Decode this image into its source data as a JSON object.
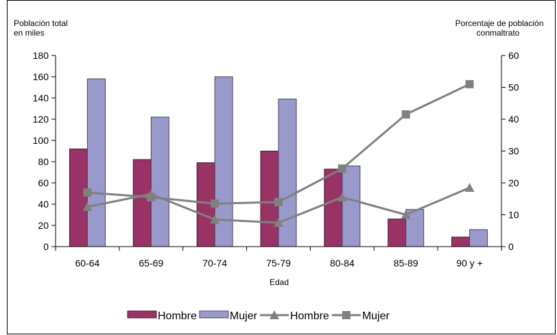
{
  "chart_data": {
    "type": "bar",
    "xlabel": "Edad",
    "categories": [
      "60-64",
      "65-69",
      "70-74",
      "75-79",
      "80-84",
      "85-89",
      "90 y +"
    ],
    "left_axis": {
      "title_lines": [
        "Población total",
        "en miles"
      ],
      "ylim": [
        0,
        180
      ],
      "ticks": [
        "0",
        "20",
        "40",
        "60",
        "80",
        "100",
        "120",
        "140",
        "160",
        "180"
      ]
    },
    "right_axis": {
      "title_lines": [
        "Porcentaje de población",
        "conmaltrato"
      ],
      "ylim": [
        0,
        60
      ],
      "ticks": [
        "0",
        "10",
        "20",
        "30",
        "40",
        "50",
        "60"
      ]
    },
    "series": [
      {
        "name": "Hombre",
        "kind": "bar",
        "axis": "left",
        "color": "#993366",
        "values": [
          92,
          82,
          79,
          90,
          73,
          26,
          9
        ]
      },
      {
        "name": "Mujer",
        "kind": "bar",
        "axis": "left",
        "color": "#9999cc",
        "values": [
          158,
          122,
          160,
          139,
          76,
          35,
          16
        ]
      },
      {
        "name": "Hombre",
        "kind": "line",
        "axis": "right",
        "marker": "triangle",
        "color": "#808080",
        "values": [
          12.5,
          16.5,
          8.5,
          7.5,
          15.5,
          10,
          18.5
        ]
      },
      {
        "name": "Mujer",
        "kind": "line",
        "axis": "right",
        "marker": "square",
        "color": "#808080",
        "values": [
          17,
          15.5,
          13.5,
          14,
          24.5,
          41.5,
          51
        ]
      }
    ],
    "legend_position": "bottom",
    "grid": false
  }
}
